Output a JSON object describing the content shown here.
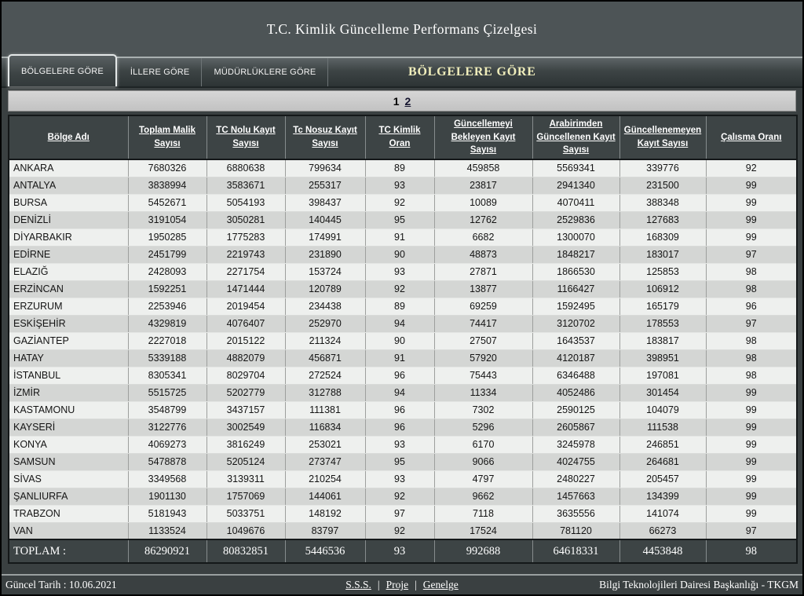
{
  "header": {
    "title": "T.C. Kimlik Güncelleme Performans Çizelgesi"
  },
  "tabs": [
    {
      "label": "BÖLGELERE GÖRE",
      "active": true
    },
    {
      "label": "İLLERE GÖRE",
      "active": false
    },
    {
      "label": "MÜDÜRLÜKLERE GÖRE",
      "active": false
    }
  ],
  "section_title": "BÖLGELERE GÖRE",
  "pagination": {
    "current": "1",
    "next": "2"
  },
  "table": {
    "columns": [
      "Bölge Adı",
      "Toplam Malik Sayısı",
      "TC Nolu Kayıt Sayısı",
      "Tc Nosuz Kayıt Sayısı",
      "TC Kimlik Oran",
      "Güncellemeyi Bekleyen Kayıt Sayısı",
      "Arabirimden Güncellenen Kayıt Sayısı",
      "Güncellenemeyen Kayıt Sayısı",
      "Çalısma Oranı"
    ],
    "rows": [
      {
        "name": "ANKARA",
        "values": [
          "7680326",
          "6880638",
          "799634",
          "89",
          "459858",
          "5569341",
          "339776",
          "92"
        ]
      },
      {
        "name": "ANTALYA",
        "values": [
          "3838994",
          "3583671",
          "255317",
          "93",
          "23817",
          "2941340",
          "231500",
          "99"
        ]
      },
      {
        "name": "BURSA",
        "values": [
          "5452671",
          "5054193",
          "398437",
          "92",
          "10089",
          "4070411",
          "388348",
          "99"
        ]
      },
      {
        "name": "DENİZLİ",
        "values": [
          "3191054",
          "3050281",
          "140445",
          "95",
          "12762",
          "2529836",
          "127683",
          "99"
        ]
      },
      {
        "name": "DİYARBAKIR",
        "values": [
          "1950285",
          "1775283",
          "174991",
          "91",
          "6682",
          "1300070",
          "168309",
          "99"
        ]
      },
      {
        "name": "EDİRNE",
        "values": [
          "2451799",
          "2219743",
          "231890",
          "90",
          "48873",
          "1848217",
          "183017",
          "97"
        ]
      },
      {
        "name": "ELAZIĞ",
        "values": [
          "2428093",
          "2271754",
          "153724",
          "93",
          "27871",
          "1866530",
          "125853",
          "98"
        ]
      },
      {
        "name": "ERZİNCAN",
        "values": [
          "1592251",
          "1471444",
          "120789",
          "92",
          "13877",
          "1166427",
          "106912",
          "98"
        ]
      },
      {
        "name": "ERZURUM",
        "values": [
          "2253946",
          "2019454",
          "234438",
          "89",
          "69259",
          "1592495",
          "165179",
          "96"
        ]
      },
      {
        "name": "ESKİŞEHİR",
        "values": [
          "4329819",
          "4076407",
          "252970",
          "94",
          "74417",
          "3120702",
          "178553",
          "97"
        ]
      },
      {
        "name": "GAZİANTEP",
        "values": [
          "2227018",
          "2015122",
          "211324",
          "90",
          "27507",
          "1643537",
          "183817",
          "98"
        ]
      },
      {
        "name": "HATAY",
        "values": [
          "5339188",
          "4882079",
          "456871",
          "91",
          "57920",
          "4120187",
          "398951",
          "98"
        ]
      },
      {
        "name": "İSTANBUL",
        "values": [
          "8305341",
          "8029704",
          "272524",
          "96",
          "75443",
          "6346488",
          "197081",
          "98"
        ]
      },
      {
        "name": "İZMİR",
        "values": [
          "5515725",
          "5202779",
          "312788",
          "94",
          "11334",
          "4052486",
          "301454",
          "99"
        ]
      },
      {
        "name": "KASTAMONU",
        "values": [
          "3548799",
          "3437157",
          "111381",
          "96",
          "7302",
          "2590125",
          "104079",
          "99"
        ]
      },
      {
        "name": "KAYSERİ",
        "values": [
          "3122776",
          "3002549",
          "116834",
          "96",
          "5296",
          "2605867",
          "111538",
          "99"
        ]
      },
      {
        "name": "KONYA",
        "values": [
          "4069273",
          "3816249",
          "253021",
          "93",
          "6170",
          "3245978",
          "246851",
          "99"
        ]
      },
      {
        "name": "SAMSUN",
        "values": [
          "5478878",
          "5205124",
          "273747",
          "95",
          "9066",
          "4024755",
          "264681",
          "99"
        ]
      },
      {
        "name": "SİVAS",
        "values": [
          "3349568",
          "3139311",
          "210254",
          "93",
          "4797",
          "2480227",
          "205457",
          "99"
        ]
      },
      {
        "name": "ŞANLIURFA",
        "values": [
          "1901130",
          "1757069",
          "144061",
          "92",
          "9662",
          "1457663",
          "134399",
          "99"
        ]
      },
      {
        "name": "TRABZON",
        "values": [
          "5181943",
          "5033751",
          "148192",
          "97",
          "7118",
          "3635556",
          "141074",
          "99"
        ]
      },
      {
        "name": "VAN",
        "values": [
          "1133524",
          "1049676",
          "83797",
          "92",
          "17524",
          "781120",
          "66273",
          "97"
        ]
      }
    ],
    "total": {
      "label": "TOPLAM :",
      "values": [
        "86290921",
        "80832851",
        "5446536",
        "93",
        "992688",
        "64618331",
        "4453848",
        "98"
      ]
    }
  },
  "footer": {
    "date": "Güncel Tarih : 10.06.2021",
    "links": [
      "S.S.S.",
      "Proje",
      "Genelge"
    ],
    "separator": "|",
    "org": "Bilgi Teknolojileri Dairesi Başkanlığı - TKGM"
  },
  "colors": {
    "top_band_bg": "#4d5456",
    "content_bg": "#3a4041",
    "table_header_bg": "#3d4445",
    "row_light": "#eef0ee",
    "row_dark": "#d4d6d4",
    "section_title_text": "#efedbb",
    "pagination_bg": "#c9c9c9"
  }
}
